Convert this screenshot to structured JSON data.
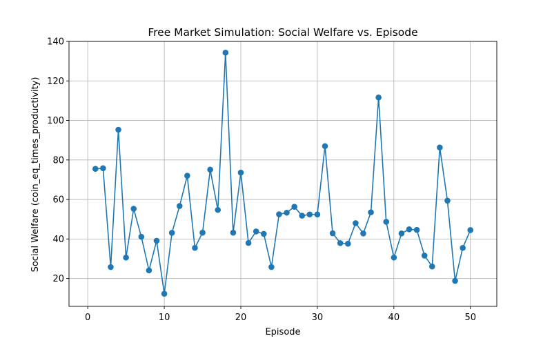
{
  "chart_data": {
    "type": "line",
    "title": "Free Market Simulation: Social Welfare vs. Episode",
    "xlabel": "Episode",
    "ylabel": "Social Welfare (coin_eq_times_productivity)",
    "xlim": [
      -2.45,
      53.45
    ],
    "ylim": [
      5.9,
      140
    ],
    "xticks": [
      0,
      10,
      20,
      30,
      40,
      50
    ],
    "yticks": [
      20,
      40,
      60,
      80,
      100,
      120,
      140
    ],
    "grid": true,
    "marker": "circle",
    "color": "#1f77b4",
    "x": [
      1,
      2,
      3,
      4,
      5,
      6,
      7,
      8,
      9,
      10,
      11,
      12,
      13,
      14,
      15,
      16,
      17,
      18,
      19,
      20,
      21,
      22,
      23,
      24,
      25,
      26,
      27,
      28,
      29,
      30,
      31,
      32,
      33,
      34,
      35,
      36,
      37,
      38,
      39,
      40,
      41,
      42,
      43,
      44,
      45,
      46,
      47,
      48,
      49,
      50
    ],
    "values": [
      75.5,
      75.8,
      25.8,
      95.3,
      30.6,
      55.3,
      41.1,
      24.1,
      39.1,
      12.3,
      43.1,
      56.7,
      72.0,
      35.5,
      43.2,
      75.1,
      54.7,
      134.3,
      43.2,
      73.6,
      38.0,
      43.8,
      42.6,
      25.8,
      52.5,
      53.3,
      56.3,
      51.8,
      52.4,
      52.4,
      87.0,
      42.9,
      37.9,
      37.6,
      48.0,
      42.8,
      53.5,
      111.6,
      48.7,
      30.6,
      42.8,
      44.9,
      44.6,
      31.6,
      26.1,
      86.3,
      59.4,
      18.8,
      35.5,
      44.5
    ]
  }
}
